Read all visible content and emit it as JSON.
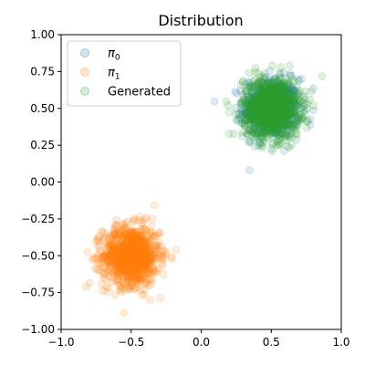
{
  "chart_data": {
    "type": "scatter",
    "title": "Distribution",
    "xlabel": "",
    "ylabel": "",
    "xlim": [
      -1.0,
      1.0
    ],
    "ylim": [
      -1.0,
      1.0
    ],
    "grid": false,
    "legend_position": "top-left",
    "x_ticks": [
      -1.0,
      -0.5,
      0.0,
      0.5,
      1.0
    ],
    "x_tick_labels": [
      "−1.0",
      "−0.5",
      "0.0",
      "0.5",
      "1.0"
    ],
    "y_ticks": [
      -1.0,
      -0.75,
      -0.5,
      -0.25,
      0.0,
      0.25,
      0.5,
      0.75,
      1.0
    ],
    "y_tick_labels": [
      "−1.00",
      "−0.75",
      "−0.50",
      "−0.25",
      "0.00",
      "0.25",
      "0.50",
      "0.75",
      "1.00"
    ],
    "series": [
      {
        "name": "π_0",
        "legend_label": "π",
        "legend_subscript": "0",
        "color": "#1f77b4",
        "alpha": 0.15,
        "center": [
          0.5,
          0.5
        ],
        "spread": 0.1,
        "count": 600
      },
      {
        "name": "π_1",
        "legend_label": "π",
        "legend_subscript": "1",
        "color": "#ff7f0e",
        "alpha": 0.15,
        "center": [
          -0.5,
          -0.5
        ],
        "spread": 0.1,
        "count": 1000
      },
      {
        "name": "Generated",
        "legend_label": "Generated",
        "legend_subscript": "",
        "color": "#2ca02c",
        "alpha": 0.15,
        "center": [
          0.5,
          0.5
        ],
        "spread": 0.1,
        "count": 1000
      }
    ]
  }
}
